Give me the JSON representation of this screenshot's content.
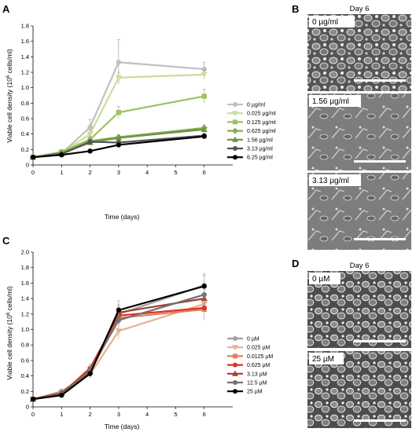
{
  "chart_data": [
    {
      "panel": "A",
      "type": "line",
      "xlabel": "Time (days)",
      "ylabel": "Viable cell density (10^6 cells/ml)",
      "xlim": [
        0,
        7
      ],
      "ylim": [
        0,
        1.8
      ],
      "x_ticks": [
        0,
        1,
        2,
        3,
        4,
        5,
        6
      ],
      "y_ticks": [
        "0",
        "0.2",
        "0.4",
        "0.6",
        "0.8",
        "1.0",
        "1.2",
        "1.4",
        "1.6",
        "1.8"
      ],
      "grid": false,
      "legend_position": "right",
      "x": [
        0,
        1,
        2,
        3,
        6
      ],
      "series": [
        {
          "name": "0 µg/ml",
          "color": "#c0c0c0",
          "marker": "circle",
          "values": [
            0.1,
            0.15,
            0.49,
            1.33,
            1.24
          ],
          "errors": [
            0.01,
            0.03,
            0.1,
            0.29,
            0.09
          ]
        },
        {
          "name": "0.025 µg/ml",
          "color": "#c8df9c",
          "marker": "triangle-down",
          "values": [
            0.1,
            0.16,
            0.4,
            1.13,
            1.17
          ],
          "errors": [
            0.01,
            0.02,
            0.05,
            0.07,
            0.06
          ]
        },
        {
          "name": "0.125 µg/ml",
          "color": "#9dc45f",
          "marker": "square",
          "values": [
            0.1,
            0.17,
            0.33,
            0.68,
            0.89
          ],
          "errors": [
            0.01,
            0.02,
            0.04,
            0.08,
            0.09
          ]
        },
        {
          "name": "0.625 µg/ml",
          "color": "#85ac50",
          "marker": "diamond",
          "values": [
            0.1,
            0.16,
            0.31,
            0.36,
            0.48
          ],
          "errors": [
            0.01,
            0.02,
            0.04,
            0.03,
            0.04
          ]
        },
        {
          "name": "1.56 µg/ml",
          "color": "#6d9440",
          "marker": "triangle-up",
          "values": [
            0.1,
            0.15,
            0.29,
            0.35,
            0.46
          ],
          "errors": [
            0.01,
            0.02,
            0.03,
            0.03,
            0.04
          ]
        },
        {
          "name": "3.13 µg/ml",
          "color": "#555555",
          "marker": "circle",
          "values": [
            0.1,
            0.14,
            0.3,
            0.29,
            0.38
          ],
          "errors": [
            0.01,
            0.02,
            0.04,
            0.03,
            0.03
          ]
        },
        {
          "name": "6.25 µg/ml",
          "color": "#000000",
          "marker": "circle",
          "values": [
            0.1,
            0.13,
            0.18,
            0.26,
            0.37
          ],
          "errors": [
            0.01,
            0.02,
            0.02,
            0.03,
            0.03
          ]
        }
      ]
    },
    {
      "panel": "C",
      "type": "line",
      "xlabel": "Time (days)",
      "ylabel": "Viable cell density (10^6 cells/ml)",
      "xlim": [
        0,
        7
      ],
      "ylim": [
        0,
        2.0
      ],
      "x_ticks": [
        0,
        1,
        2,
        3,
        4,
        5,
        6
      ],
      "y_ticks": [
        "0",
        "0.2",
        "0.4",
        "0.6",
        "0.8",
        "1.0",
        "1.2",
        "1.4",
        "1.6",
        "1.8",
        "2.0"
      ],
      "grid": false,
      "legend_position": "right",
      "x": [
        0,
        1,
        2,
        3,
        6
      ],
      "series": [
        {
          "name": "0 µM",
          "color": "#a0a0a0",
          "marker": "circle",
          "values": [
            0.1,
            0.2,
            0.44,
            1.2,
            1.57
          ],
          "errors": [
            0.01,
            0.03,
            0.05,
            0.1,
            0.15
          ]
        },
        {
          "name": "0.025 µM",
          "color": "#e8b090",
          "marker": "triangle-down",
          "values": [
            0.1,
            0.19,
            0.42,
            0.98,
            1.33
          ],
          "errors": [
            0.01,
            0.03,
            0.05,
            0.1,
            0.12
          ]
        },
        {
          "name": "0.0125 µM",
          "color": "#e08060",
          "marker": "square",
          "values": [
            0.1,
            0.18,
            0.45,
            1.15,
            1.26
          ],
          "errors": [
            0.01,
            0.03,
            0.05,
            0.1,
            0.14
          ]
        },
        {
          "name": "0.625 µM",
          "color": "#dd3322",
          "marker": "circle",
          "values": [
            0.1,
            0.17,
            0.5,
            1.18,
            1.28
          ],
          "errors": [
            0.01,
            0.03,
            0.05,
            0.1,
            0.1
          ]
        },
        {
          "name": "3.13 µM",
          "color": "#a04030",
          "marker": "triangle-up",
          "values": [
            0.1,
            0.18,
            0.46,
            1.22,
            1.4
          ],
          "errors": [
            0.01,
            0.03,
            0.05,
            0.1,
            0.12
          ]
        },
        {
          "name": "12.5 µM",
          "color": "#707070",
          "marker": "circle",
          "values": [
            0.1,
            0.16,
            0.47,
            1.12,
            1.45
          ],
          "errors": [
            0.01,
            0.03,
            0.05,
            0.1,
            0.12
          ]
        },
        {
          "name": "25 µM",
          "color": "#000000",
          "marker": "circle",
          "values": [
            0.1,
            0.15,
            0.43,
            1.25,
            1.56
          ],
          "errors": [
            0.01,
            0.03,
            0.05,
            0.12,
            0.14
          ]
        }
      ]
    }
  ],
  "panel_letters": {
    "a": "A",
    "b": "B",
    "c": "C",
    "d": "D"
  },
  "micrographs": {
    "b": {
      "title": "Day 6",
      "labels": [
        "0 µg/ml",
        "1.56 µg/ml",
        "3.13 µg/ml"
      ]
    },
    "d": {
      "title": "Day 6",
      "labels": [
        "0 µM",
        "25 µM"
      ]
    }
  }
}
